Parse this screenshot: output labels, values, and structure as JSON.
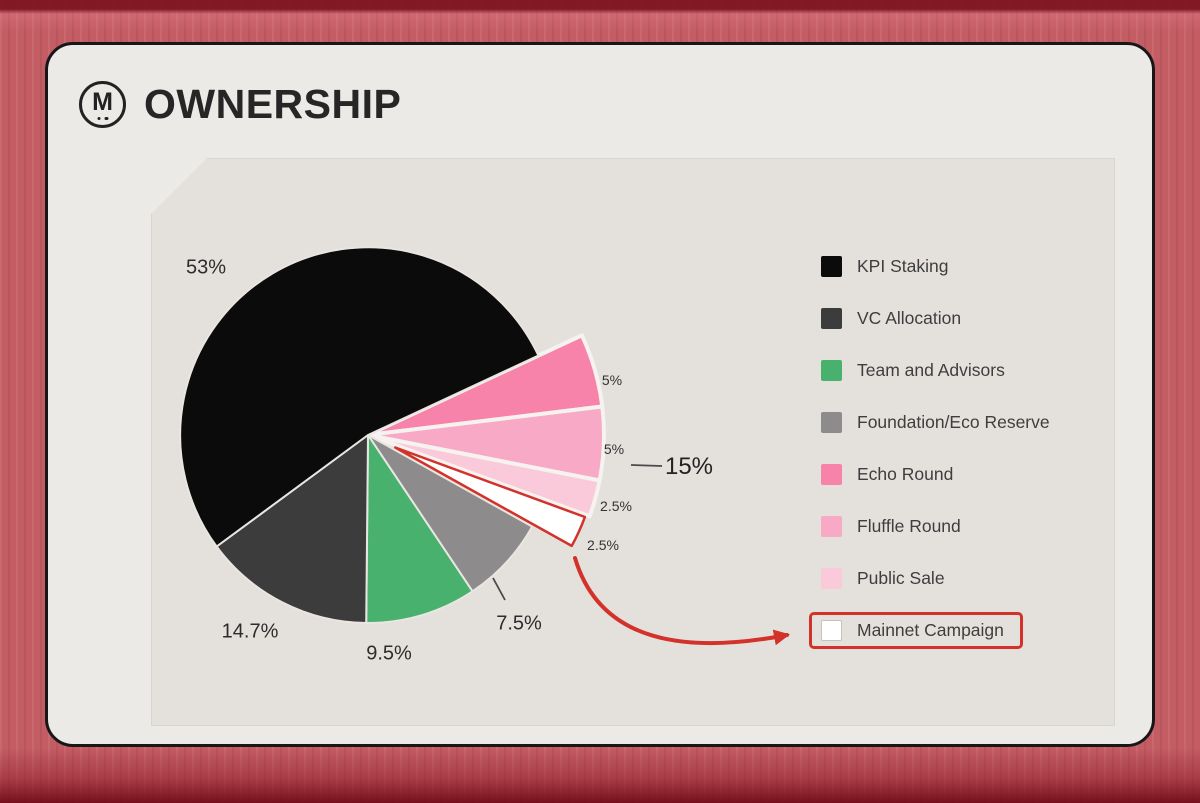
{
  "colors": {
    "accent": "#d2322a",
    "card_bg": "#eceae7",
    "panel_bg": "#e4e1dd"
  },
  "header": {
    "logo_letter": "M",
    "title": "OWNERSHIP"
  },
  "chart_data": {
    "type": "pie",
    "title": "OWNERSHIP",
    "legend_position": "right",
    "group_label": "15%",
    "slices": [
      {
        "label": "KPI Staking",
        "value": 53,
        "pct_label": "53%",
        "color": "#0b0b0b"
      },
      {
        "label": "VC Allocation",
        "value": 14.7,
        "pct_label": "14.7%",
        "color": "#3c3c3c"
      },
      {
        "label": "Team and Advisors",
        "value": 9.5,
        "pct_label": "9.5%",
        "color": "#47b16d"
      },
      {
        "label": "Foundation/Eco Reserve",
        "value": 7.5,
        "pct_label": "7.5%",
        "color": "#8d8b8b"
      },
      {
        "label": "Echo Round",
        "value": 5,
        "pct_label": "5%",
        "color": "#f783ab"
      },
      {
        "label": "Fluffle Round",
        "value": 5,
        "pct_label": "5%",
        "color": "#f8a9c5"
      },
      {
        "label": "Public Sale",
        "value": 2.5,
        "pct_label": "2.5%",
        "color": "#fac9da"
      },
      {
        "label": "Mainnet Campaign",
        "value": 2.5,
        "pct_label": "2.5%",
        "color": "#ffffff",
        "exploded": true,
        "highlighted": true
      }
    ]
  }
}
